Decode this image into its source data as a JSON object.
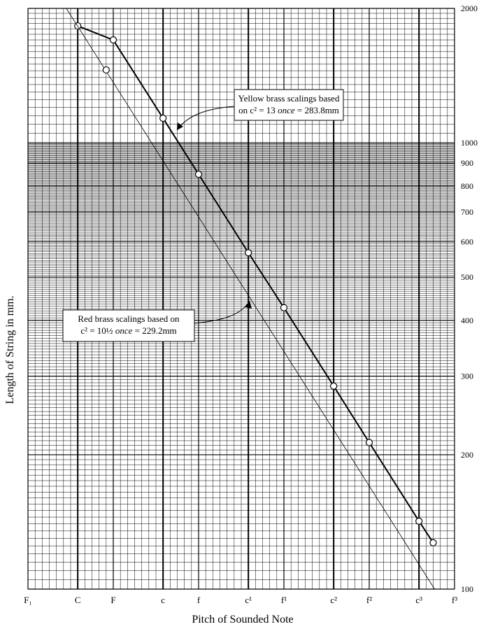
{
  "chart_data": {
    "type": "line",
    "xlabel": "Pitch of Sounded Note",
    "ylabel": "Length of String in mm.",
    "log_y": true,
    "grid": true,
    "xlim": [
      0,
      60
    ],
    "ylim": [
      100,
      2000
    ],
    "xticks": [
      {
        "value": 0,
        "label": "F₁"
      },
      {
        "value": 7,
        "label": "C"
      },
      {
        "value": 12,
        "label": "F"
      },
      {
        "value": 19,
        "label": "c"
      },
      {
        "value": 24,
        "label": "f"
      },
      {
        "value": 31,
        "label": "c¹"
      },
      {
        "value": 36,
        "label": "f¹"
      },
      {
        "value": 43,
        "label": "c²"
      },
      {
        "value": 48,
        "label": "f²"
      },
      {
        "value": 55,
        "label": "c³"
      },
      {
        "value": 60,
        "label": "f³"
      }
    ],
    "yticks": [
      100,
      200,
      300,
      400,
      500,
      600,
      700,
      800,
      900,
      1000,
      2000
    ],
    "series": [
      {
        "color": "#000000",
        "line_width": 2,
        "marker": "circle",
        "x": [
          7,
          12,
          19,
          24,
          31,
          36,
          43,
          48,
          55,
          57
        ],
        "values": [
          1827,
          1700,
          1135,
          850,
          567,
          427,
          285,
          213,
          142,
          127
        ]
      },
      {
        "color": "#000000",
        "line_width": 0.8,
        "x": [
          5.4,
          57.2
        ],
        "values": [
          2000,
          100
        ]
      },
      {
        "color": "#000000",
        "line_width": 0,
        "marker": "circle",
        "x": [
          11
        ],
        "values": [
          1456
        ]
      }
    ],
    "annotations": [
      {
        "lines": [
          [
            {
              "text": "Yellow brass scalings based"
            }
          ],
          [
            {
              "text": "on c² = 13 "
            },
            {
              "text": "once",
              "italic": true
            },
            {
              "text": " = 283.8mm"
            }
          ]
        ]
      },
      {
        "lines": [
          [
            {
              "text": "Red brass scalings based on"
            }
          ],
          [
            {
              "text": "c² = 10½ "
            },
            {
              "text": "once",
              "italic": true
            },
            {
              "text": " = 229.2mm"
            }
          ]
        ]
      }
    ]
  }
}
